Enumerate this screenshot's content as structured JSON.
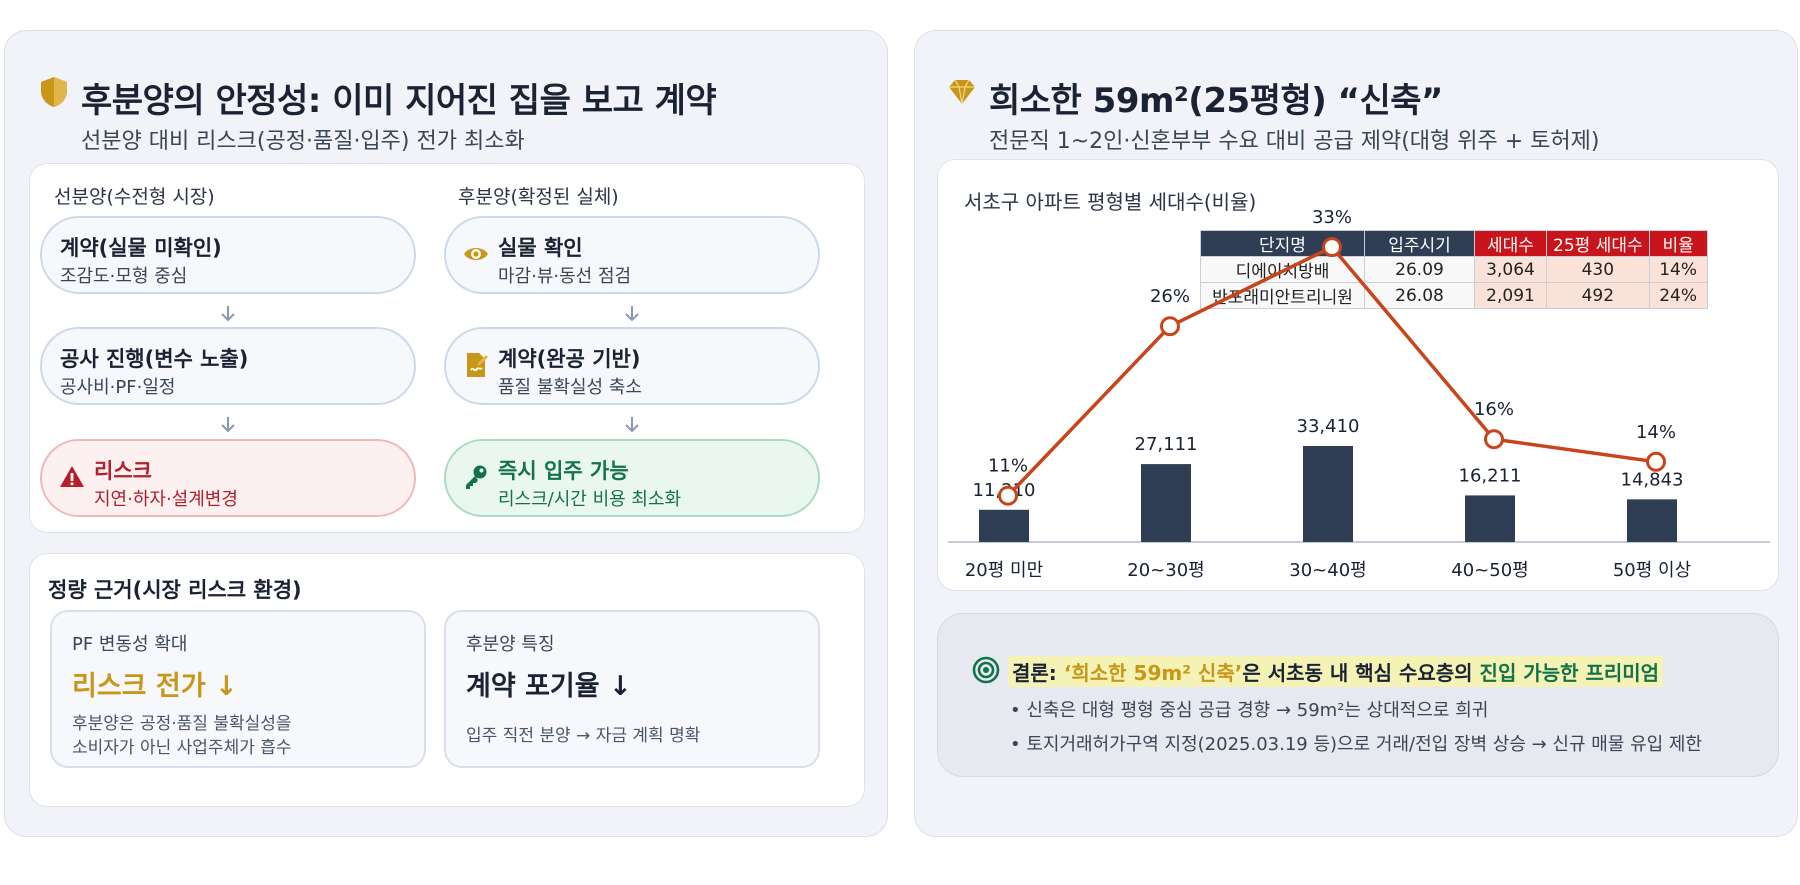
{
  "left": {
    "title": "후분양의 안정성: 이미 지어진 집을 보고 계약",
    "subtitle": "선분양 대비 리스크(공정·품질·입주) 전가 최소화",
    "pre_sale": {
      "heading": "선분양(수전형 시장)",
      "steps": [
        {
          "title": "계약(실물 미확인)",
          "desc": "조감도·모형 중심"
        },
        {
          "title": "공사 진행(변수 노출)",
          "desc": "공사비·PF·일정"
        },
        {
          "title": "리스크",
          "desc": "지연·하자·설계변경"
        }
      ]
    },
    "post_sale": {
      "heading": "후분양(확정된 실체)",
      "steps": [
        {
          "title": "실물 확인",
          "desc": "마감·뷰·동선 점검"
        },
        {
          "title": "계약(완공 기반)",
          "desc": "품질 불확실성 축소"
        },
        {
          "title": "즉시 입주 가능",
          "desc": "리스크/시간 비용 최소화"
        }
      ]
    },
    "quant": {
      "title": "정량 근거(시장 리스크 환경)",
      "boxes": [
        {
          "label": "PF 변동성 확대",
          "big": "리스크 전가 ↓",
          "desc1": "후분양은 공정·품질 불확실성을",
          "desc2": "소비자가 아닌 사업주체가 흡수",
          "color": "#c89619"
        },
        {
          "label": "후분양 특징",
          "big": "계약 포기율 ↓",
          "desc1": "입주 직전 분양 → 자금 계획 명확",
          "desc2": "",
          "color": "#1a2233"
        }
      ]
    }
  },
  "right": {
    "title": "희소한 59m²(25평형) “신축”",
    "subtitle": "전문직 1~2인·신혼부부 수요 대비 공급 제약(대형 위주 + 토허제)",
    "chart_title": "서초구 아파트 평형별 세대수(비율)",
    "table": {
      "headers": [
        "단지명",
        "입주시기",
        "세대수",
        "25평 세대수",
        "비율"
      ],
      "rows": [
        [
          "디에이치방배",
          "26.09",
          "3,064",
          "430",
          "14%"
        ],
        [
          "반포래미안트리니원",
          "26.08",
          "2,091",
          "492",
          "24%"
        ]
      ]
    },
    "conclusion": {
      "prefix": "결론: ",
      "highlight": "‘희소한 59m² 신축’",
      "middle": "은 서초동 내 핵심 수요층의 ",
      "green": "진입 가능한 프리미엄",
      "bullets": [
        "• 신축은 대형 평형 중심 공급 경향 → 59m²는 상대적으로 희귀",
        "• 토지거래허가구역 지정(2025.03.19 등)으로 거래/전입 장벽 상승 → 신규 매물 유입 제한"
      ]
    }
  },
  "colors": {
    "bar": "#2f3d55",
    "line": "#c8451c",
    "gold": "#c89619",
    "risk": "#b21f2a",
    "ok": "#13724a",
    "table_header": "#2f3d55",
    "table_header_red": "#c8141b"
  },
  "chart_data": {
    "type": "bar",
    "title": "서초구 아파트 평형별 세대수(비율)",
    "categories": [
      "20평 미만",
      "20~30평",
      "30~40평",
      "40~50평",
      "50평 이상"
    ],
    "series": [
      {
        "values": [
          11210,
          27111,
          33410,
          16211,
          14843
        ],
        "labels": [
          "11,210",
          "27,111",
          "33,410",
          "16,211",
          "14,843"
        ]
      },
      {
        "values": [
          11,
          26,
          33,
          16,
          14
        ],
        "labels": [
          "11%",
          "26%",
          "33%",
          "16%",
          "14%"
        ]
      }
    ]
  }
}
